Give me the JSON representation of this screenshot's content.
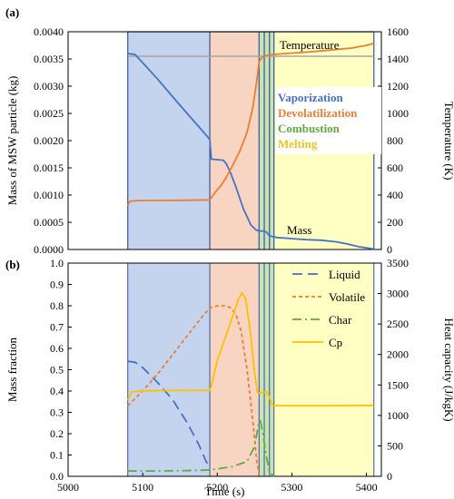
{
  "chart_data": [
    {
      "type": "line",
      "panel_label": "(a)",
      "xlabel": "",
      "ylabel": "Mass of MSW particle (kg)",
      "ylabel_right": "Temperature (K)",
      "xlim": [
        5000,
        5420
      ],
      "ylim": [
        0,
        0.004
      ],
      "ylim_right": [
        0,
        1600
      ],
      "y_ticks": [
        "0.0000",
        "0.0005",
        "0.0010",
        "0.0015",
        "0.0020",
        "0.0025",
        "0.0030",
        "0.0035",
        "0.0040"
      ],
      "y_right_ticks": [
        "0",
        "200",
        "400",
        "600",
        "800",
        "1000",
        "1200",
        "1400",
        "1600"
      ],
      "regions": [
        {
          "name": "Vaporization",
          "start": 5080,
          "end": 5190,
          "color": "#c5d4ee"
        },
        {
          "name": "Devolatilization",
          "start": 5190,
          "end": 5256,
          "color": "#f8d5c3"
        },
        {
          "name": "Combustion",
          "start": 5256,
          "end": 5276,
          "color": "#c9e3b7"
        },
        {
          "name": "Melting",
          "start": 5276,
          "end": 5410,
          "color": "#ffffc4"
        }
      ],
      "region_boundaries": [
        5080,
        5190,
        5256,
        5263,
        5270,
        5276,
        5410
      ],
      "series": [
        {
          "name": "Mass",
          "axis": "left",
          "color": "#4472c4",
          "x": [
            5080,
            5090,
            5120,
            5150,
            5180,
            5190,
            5192,
            5200,
            5208,
            5212,
            5218,
            5225,
            5235,
            5245,
            5252,
            5256,
            5262,
            5266,
            5270,
            5280,
            5300,
            5320,
            5340,
            5360,
            5375,
            5390,
            5410
          ],
          "y": [
            0.0036,
            0.00358,
            0.00313,
            0.00265,
            0.00218,
            0.00202,
            0.00166,
            0.00165,
            0.00164,
            0.00158,
            0.0014,
            0.00115,
            0.00075,
            0.00045,
            0.00036,
            0.00034,
            0.00034,
            0.00032,
            0.00025,
            0.00022,
            0.0002,
            0.00018,
            0.00017,
            0.00014,
            0.0001,
            5e-05,
            1e-05
          ]
        },
        {
          "name": "Temperature",
          "axis": "right",
          "color": "#ed7d31",
          "x": [
            5080,
            5082,
            5085,
            5090,
            5100,
            5130,
            5160,
            5190,
            5192,
            5198,
            5205,
            5212,
            5220,
            5230,
            5240,
            5248,
            5254,
            5256,
            5260,
            5266,
            5270,
            5290,
            5320,
            5350,
            5380,
            5400,
            5410
          ],
          "y": [
            320,
            350,
            356,
            358,
            360,
            360,
            362,
            365,
            380,
            425,
            470,
            530,
            610,
            720,
            860,
            1050,
            1280,
            1380,
            1410,
            1425,
            1430,
            1440,
            1450,
            1465,
            1480,
            1500,
            1515
          ]
        }
      ],
      "reference_line": {
        "name": "Temperature",
        "axis": "right",
        "y": 1420,
        "x_range": [
          5080,
          5410
        ],
        "color": "#a6a6a6"
      },
      "annotations": [
        "Temperature",
        "Mass"
      ],
      "phase_labels": [
        {
          "text": "Vaporization",
          "color": "#4472c4"
        },
        {
          "text": "Devolatilization",
          "color": "#ed7d31"
        },
        {
          "text": "Combustion",
          "color": "#5cae3c"
        },
        {
          "text": "Melting",
          "color": "#f5c21b"
        }
      ]
    },
    {
      "type": "line",
      "panel_label": "(b)",
      "xlabel": "Time (s)",
      "ylabel": "Mass fraction",
      "ylabel_right": "Heat capacity (J/kgK)",
      "xlim": [
        5000,
        5420
      ],
      "ylim": [
        0,
        1.0
      ],
      "ylim_right": [
        0,
        3500
      ],
      "x_ticks": [
        "5000",
        "5100",
        "5200",
        "5300",
        "5400"
      ],
      "y_ticks": [
        "0.0",
        "0.1",
        "0.2",
        "0.3",
        "0.4",
        "0.5",
        "0.6",
        "0.7",
        "0.8",
        "0.9",
        "1.0"
      ],
      "y_right_ticks": [
        "0",
        "500",
        "1000",
        "1500",
        "2000",
        "2500",
        "3000",
        "3500"
      ],
      "legend_position": "top-right",
      "series": [
        {
          "name": "Liquid",
          "axis": "left",
          "color": "#4472c4",
          "dash": "dashed",
          "x": [
            5080,
            5090,
            5100,
            5120,
            5140,
            5160,
            5175,
            5185,
            5190
          ],
          "y": [
            0.54,
            0.535,
            0.51,
            0.44,
            0.36,
            0.25,
            0.15,
            0.07,
            0.04
          ]
        },
        {
          "name": "Volatile",
          "axis": "left",
          "color": "#ed7d31",
          "dash": "dotted",
          "x": [
            5080,
            5100,
            5120,
            5140,
            5160,
            5180,
            5190,
            5200,
            5210,
            5218,
            5225,
            5232,
            5240,
            5248,
            5253,
            5256
          ],
          "y": [
            0.33,
            0.4,
            0.48,
            0.57,
            0.66,
            0.75,
            0.79,
            0.8,
            0.8,
            0.79,
            0.76,
            0.68,
            0.5,
            0.25,
            0.07,
            0.01
          ]
        },
        {
          "name": "Char",
          "axis": "left",
          "color": "#5cae3c",
          "dash": "dashdot",
          "x": [
            5080,
            5120,
            5160,
            5190,
            5200,
            5220,
            5240,
            5250,
            5255,
            5258,
            5262,
            5266,
            5270,
            5276
          ],
          "y": [
            0.025,
            0.025,
            0.027,
            0.03,
            0.035,
            0.045,
            0.07,
            0.14,
            0.24,
            0.26,
            0.18,
            0.09,
            0.02,
            0.0
          ]
        },
        {
          "name": "Cp",
          "axis": "right",
          "color": "#ffc000",
          "dash": "solid",
          "x": [
            5080,
            5085,
            5095,
            5110,
            5130,
            5160,
            5190,
            5192,
            5200,
            5210,
            5220,
            5228,
            5233,
            5238,
            5244,
            5250,
            5254,
            5256,
            5262,
            5266,
            5270,
            5274,
            5280,
            5320,
            5360,
            5410
          ],
          "y": [
            1250,
            1385,
            1400,
            1405,
            1408,
            1410,
            1412,
            1480,
            1900,
            2250,
            2600,
            2900,
            3010,
            2920,
            2400,
            1700,
            1370,
            1370,
            1380,
            1385,
            1300,
            1165,
            1160,
            1160,
            1160,
            1165
          ]
        }
      ],
      "regions": [
        {
          "name": "Vaporization",
          "start": 5080,
          "end": 5190,
          "color": "#c5d4ee"
        },
        {
          "name": "Devolatilization",
          "start": 5190,
          "end": 5256,
          "color": "#f8d5c3"
        },
        {
          "name": "Combustion",
          "start": 5256,
          "end": 5276,
          "color": "#c9e3b7"
        },
        {
          "name": "Melting",
          "start": 5276,
          "end": 5410,
          "color": "#ffffc4"
        }
      ]
    }
  ]
}
